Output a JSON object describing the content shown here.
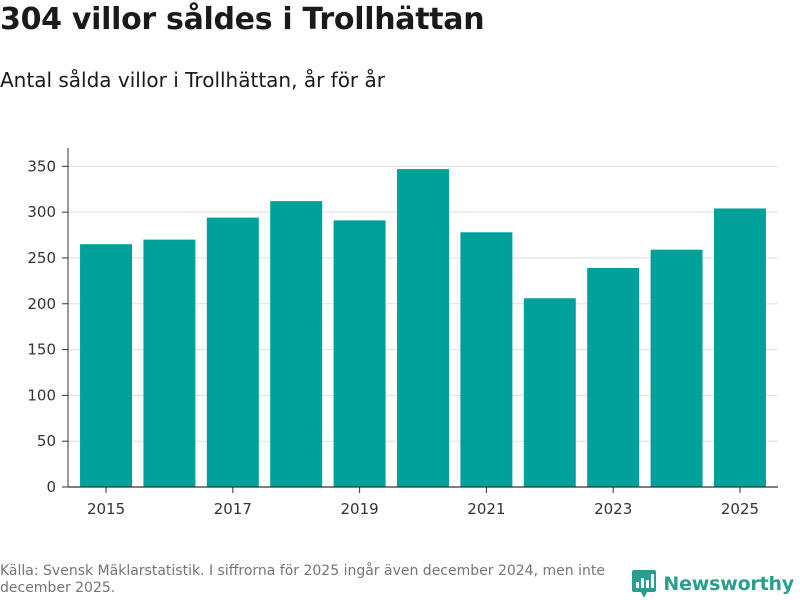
{
  "title": "304 villor såldes i Trollhättan",
  "subtitle": "Antal sålda villor i Trollhättan, år för år",
  "chart_data": {
    "type": "bar",
    "title": "304 villor såldes i Trollhättan",
    "subtitle": "Antal sålda villor i Trollhättan, år för år",
    "categories": [
      "2015",
      "2016",
      "2017",
      "2018",
      "2019",
      "2020",
      "2021",
      "2022",
      "2023",
      "2024",
      "2025"
    ],
    "values": [
      265,
      270,
      294,
      312,
      291,
      347,
      278,
      206,
      239,
      259,
      304
    ],
    "x_tick_labels": [
      "2015",
      "2017",
      "2019",
      "2021",
      "2023",
      "2025"
    ],
    "y_ticks": [
      0,
      50,
      100,
      150,
      200,
      250,
      300,
      350
    ],
    "ylim": [
      0,
      370
    ],
    "xlabel": "",
    "ylabel": "",
    "grid": true,
    "bar_color": "#00a19a"
  },
  "footer": {
    "source": "Källa: Svensk Mäklarstatistik. I siffrorna för 2025 ingår även december 2024, men inte december 2025."
  },
  "brand": {
    "name": "Newsworthy",
    "icon": "newsworthy-logo-icon",
    "color": "#2a9d8f"
  }
}
